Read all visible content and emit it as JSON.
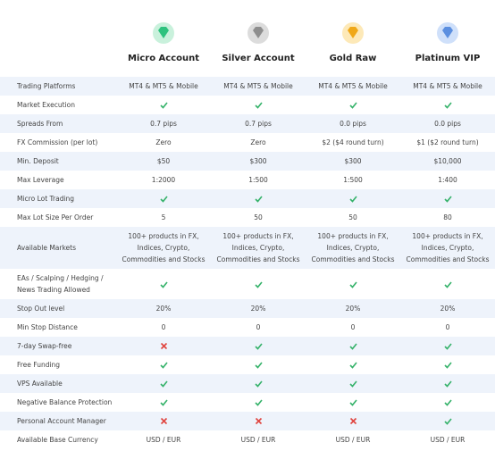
{
  "header": {
    "columns": [
      "Micro Account",
      "Silver Account",
      "Gold Raw",
      "Platinum VIP"
    ]
  },
  "table": {
    "rows": [
      [
        "Trading Platforms",
        "MT4 & MT5 & Mobile",
        "MT4 & MT5 & Mobile",
        "MT4 & MT5 & Mobile",
        "MT4 & MT5 & Mobile"
      ],
      [
        "Market Execution",
        true,
        true,
        true,
        true
      ],
      [
        "Spreads From",
        "0.7 pips",
        "0.7 pips",
        "0.0 pips",
        "0.0 pips"
      ],
      [
        "FX Commission (per lot)",
        "Zero",
        "Zero",
        "$2 ($4 round turn)",
        "$1 ($2 round turn)"
      ],
      [
        "Min. Deposit",
        "$50",
        "$300",
        "$300",
        "$10,000"
      ],
      [
        "Max Leverage",
        "1:2000",
        "1:500",
        "1:500",
        "1:400"
      ],
      [
        "Micro Lot Trading",
        true,
        true,
        true,
        true
      ],
      [
        "Max Lot Size Per Order",
        "5",
        "50",
        "50",
        "80"
      ],
      [
        "Available Markets",
        "100+ products in FX, Indices, Crypto, Commodities and Stocks",
        "100+ products in FX, Indices, Crypto, Commodities and Stocks",
        "100+ products in FX, Indices, Crypto, Commodities and Stocks",
        "100+ products in FX, Indices, Crypto, Commodities and Stocks"
      ],
      [
        "EAs / Scalping / Hedging / News Trading Allowed",
        true,
        true,
        true,
        true
      ],
      [
        "Stop Out level",
        "20%",
        "20%",
        "20%",
        "20%"
      ],
      [
        "Min Stop Distance",
        "0",
        "0",
        "0",
        "0"
      ],
      [
        "7-day Swap-free",
        false,
        true,
        true,
        true
      ],
      [
        "Free Funding",
        true,
        true,
        true,
        true
      ],
      [
        "VPS Available",
        true,
        true,
        true,
        true
      ],
      [
        "Negative Balance Protection",
        true,
        true,
        true,
        true
      ],
      [
        "Personal Account Manager",
        false,
        false,
        false,
        true
      ],
      [
        "Available Base Currency",
        "USD / EUR",
        "USD / EUR",
        "USD / EUR",
        "USD / EUR"
      ]
    ]
  }
}
